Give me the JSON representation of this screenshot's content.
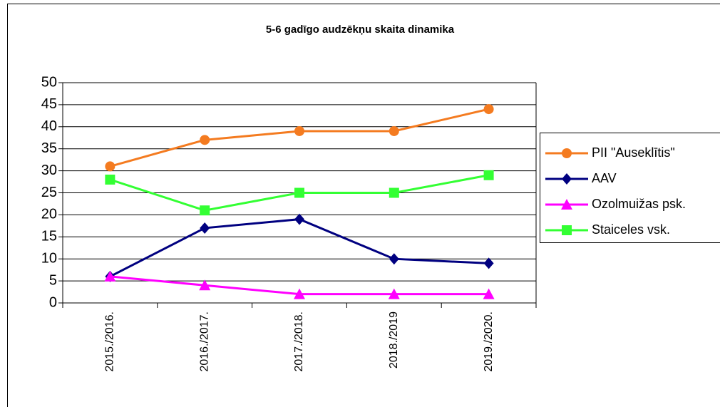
{
  "chart_data": {
    "type": "line",
    "title": "5-6 gadīgo audzēkņu skaita dinamika",
    "categories": [
      "2015./2016.",
      "2016./2017.",
      "2017./2018.",
      "2018./2019",
      "2019./2020."
    ],
    "series": [
      {
        "name": "PII \"Auseklītis\"",
        "color": "#f47b20",
        "marker": "circle",
        "values": [
          31,
          37,
          39,
          39,
          44
        ]
      },
      {
        "name": "AAV",
        "color": "#000080",
        "marker": "diamond",
        "values": [
          6,
          17,
          19,
          10,
          9
        ]
      },
      {
        "name": "Ozolmuižas psk.",
        "color": "#ff00ff",
        "marker": "triangle",
        "values": [
          6,
          4,
          2,
          2,
          2
        ]
      },
      {
        "name": "Staiceles vsk.",
        "color": "#33ff33",
        "marker": "square",
        "values": [
          28,
          21,
          25,
          25,
          29
        ]
      }
    ],
    "ylim": [
      0,
      50
    ],
    "yticks": [
      0,
      5,
      10,
      15,
      20,
      25,
      30,
      35,
      40,
      45,
      50
    ],
    "grid": true,
    "legend": "right"
  }
}
